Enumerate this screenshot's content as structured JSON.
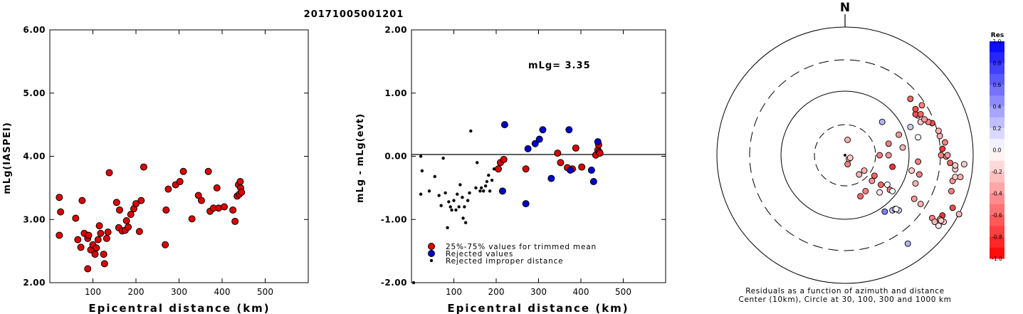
{
  "page_title": "20171005001201",
  "chart_data": [
    {
      "type": "scatter",
      "title": "",
      "xlabel": "Epicentral distance (km)",
      "ylabel": "mLg(IASPEI)",
      "xlim": [
        0,
        600
      ],
      "ylim": [
        2.0,
        6.0
      ],
      "x_ticks": [
        "100",
        "200",
        "300",
        "400",
        "500"
      ],
      "y_ticks": [
        "2.00",
        "3.00",
        "4.00",
        "5.00",
        "6.00"
      ],
      "series": [
        {
          "color": "#dd0000",
          "points": [
            [
              22,
              3.35
            ],
            [
              22,
              2.75
            ],
            [
              25,
              3.12
            ],
            [
              60,
              3.02
            ],
            [
              65,
              2.68
            ],
            [
              72,
              2.56
            ],
            [
              75,
              3.3
            ],
            [
              80,
              2.78
            ],
            [
              88,
              2.22
            ],
            [
              88,
              2.7
            ],
            [
              90,
              2.75
            ],
            [
              95,
              2.52
            ],
            [
              100,
              2.6
            ],
            [
              105,
              2.45
            ],
            [
              108,
              2.55
            ],
            [
              112,
              2.68
            ],
            [
              115,
              2.9
            ],
            [
              118,
              2.78
            ],
            [
              125,
              2.45
            ],
            [
              127,
              2.3
            ],
            [
              132,
              2.7
            ],
            [
              135,
              2.8
            ],
            [
              138,
              3.74
            ],
            [
              155,
              3.27
            ],
            [
              160,
              2.87
            ],
            [
              162,
              3.15
            ],
            [
              168,
              2.82
            ],
            [
              175,
              2.83
            ],
            [
              178,
              2.98
            ],
            [
              182,
              2.88
            ],
            [
              188,
              3.08
            ],
            [
              195,
              3.17
            ],
            [
              200,
              3.25
            ],
            [
              208,
              2.81
            ],
            [
              212,
              3.3
            ],
            [
              218,
              3.83
            ],
            [
              268,
              2.6
            ],
            [
              270,
              3.15
            ],
            [
              275,
              3.48
            ],
            [
              292,
              3.55
            ],
            [
              302,
              3.6
            ],
            [
              310,
              3.76
            ],
            [
              330,
              3.01
            ],
            [
              345,
              3.38
            ],
            [
              352,
              3.3
            ],
            [
              368,
              3.76
            ],
            [
              372,
              3.13
            ],
            [
              380,
              3.18
            ],
            [
              388,
              3.5
            ],
            [
              392,
              3.18
            ],
            [
              405,
              3.2
            ],
            [
              425,
              3.15
            ],
            [
              430,
              2.97
            ],
            [
              435,
              3.37
            ],
            [
              438,
              3.55
            ],
            [
              440,
              3.4
            ],
            [
              442,
              3.6
            ],
            [
              443,
              3.5
            ],
            [
              445,
              3.43
            ]
          ]
        }
      ]
    },
    {
      "type": "scatter",
      "title": "",
      "xlabel": "Epicentral distance (km)",
      "ylabel": "mLg - mLg(evt)",
      "xlim": [
        0,
        600
      ],
      "ylim": [
        -2.0,
        2.0
      ],
      "x_ticks": [
        "100",
        "200",
        "300",
        "400",
        "500"
      ],
      "y_ticks": [
        "-2.00",
        "-1.00",
        "0.00",
        "1.00",
        "2.00"
      ],
      "annotation": "mLg= 3.35",
      "legend": [
        "25%-75% values for trimmed mean",
        "Rejected values",
        "Rejected improper distance"
      ],
      "series": [
        {
          "name": "25%-75% values for trimmed mean",
          "color": "#dd0000",
          "marker": "circle",
          "points": [
            [
              205,
              -0.2
            ],
            [
              210,
              -0.1
            ],
            [
              218,
              -0.05
            ],
            [
              270,
              -0.2
            ],
            [
              345,
              0.05
            ],
            [
              352,
              -0.1
            ],
            [
              368,
              -0.18
            ],
            [
              380,
              -0.2
            ],
            [
              388,
              0.13
            ],
            [
              402,
              -0.17
            ],
            [
              435,
              0.02
            ],
            [
              440,
              0.1
            ],
            [
              442,
              0.18
            ],
            [
              443,
              0.07
            ],
            [
              445,
              0.05
            ]
          ]
        },
        {
          "name": "Rejected values",
          "color": "#0000cc",
          "marker": "circle",
          "points": [
            [
              215,
              -0.55
            ],
            [
              220,
              0.5
            ],
            [
              270,
              -0.75
            ],
            [
              275,
              0.12
            ],
            [
              292,
              0.2
            ],
            [
              302,
              0.27
            ],
            [
              310,
              0.42
            ],
            [
              330,
              -0.35
            ],
            [
              372,
              0.42
            ],
            [
              375,
              -0.22
            ],
            [
              425,
              -0.22
            ],
            [
              430,
              -0.4
            ],
            [
              440,
              0.23
            ]
          ]
        },
        {
          "name": "Rejected improper distance",
          "color": "#000000",
          "marker": "dot",
          "points": [
            [
              5,
              -2.0
            ],
            [
              22,
              0.0
            ],
            [
              22,
              -0.6
            ],
            [
              25,
              -0.23
            ],
            [
              42,
              -0.55
            ],
            [
              55,
              -0.32
            ],
            [
              65,
              -0.62
            ],
            [
              70,
              -0.78
            ],
            [
              75,
              -0.03
            ],
            [
              80,
              -0.58
            ],
            [
              85,
              -1.13
            ],
            [
              88,
              -0.72
            ],
            [
              92,
              -0.8
            ],
            [
              95,
              -0.85
            ],
            [
              100,
              -0.7
            ],
            [
              105,
              -0.85
            ],
            [
              108,
              -0.6
            ],
            [
              112,
              -0.8
            ],
            [
              115,
              -0.45
            ],
            [
              120,
              -0.65
            ],
            [
              122,
              -0.98
            ],
            [
              125,
              -0.8
            ],
            [
              128,
              -1.05
            ],
            [
              133,
              -0.7
            ],
            [
              137,
              -0.58
            ],
            [
              140,
              0.4
            ],
            [
              152,
              -0.5
            ],
            [
              155,
              -0.1
            ],
            [
              162,
              -0.55
            ],
            [
              165,
              -0.5
            ],
            [
              170,
              -0.55
            ],
            [
              175,
              -0.47
            ],
            [
              178,
              -0.4
            ],
            [
              182,
              -0.3
            ],
            [
              185,
              -0.55
            ],
            [
              190,
              -0.38
            ],
            [
              195,
              -0.2
            ]
          ]
        }
      ]
    },
    {
      "type": "scatter",
      "subtype": "polar",
      "title": "N",
      "caption_line1": "Residuals as a function of azimuth and distance",
      "caption_line2": "Center (10km), Circle at 30, 100, 300 and 1000 km",
      "colorbar_title": "Res",
      "colorbar_ticks": [
        "1.0",
        "0.8",
        "0.6",
        "0.4",
        "0.2",
        "0.0",
        "-0.2",
        "-0.4",
        "-0.6",
        "-0.8",
        "-1.0"
      ],
      "series": [
        {
          "points": [
            [
              -27,
              -29,
              -0.1
            ],
            [
              -35,
              -27,
              -0.5
            ],
            [
              -37,
              -28,
              0.0
            ],
            [
              -33,
              -23,
              0.0
            ],
            [
              -31,
              -44,
              0.5
            ],
            [
              -42,
              -43,
              0.2
            ],
            [
              -37,
              -43,
              0.2
            ],
            [
              -49,
              -69,
              0.3
            ],
            [
              -73,
              -55,
              -0.1
            ],
            [
              -77,
              -52,
              -0.2
            ],
            [
              -89,
              -46,
              -0.3
            ],
            [
              -76,
              -47,
              -0.8
            ],
            [
              -84,
              -41,
              -0.7
            ],
            [
              -83,
              -28,
              -0.5
            ],
            [
              -84,
              -20,
              -0.4
            ],
            [
              -82,
              -6,
              -0.6
            ],
            [
              -86,
              -17,
              -0.2
            ],
            [
              -90,
              -17,
              -0.3
            ],
            [
              -86,
              -11,
              -0.2
            ],
            [
              -86,
              -8,
              -0.2
            ],
            [
              -76,
              5,
              -0.8
            ],
            [
              -75,
              0,
              -0.5
            ],
            [
              -79,
              -1,
              -0.4
            ],
            [
              -80,
              0,
              -0.4
            ],
            [
              -93,
              -7,
              -0.2
            ],
            [
              -78,
              10,
              -0.5
            ],
            [
              -74,
              15,
              -0.3
            ],
            [
              -57,
              14,
              0.0
            ],
            [
              -73,
              19,
              -0.3
            ],
            [
              -68,
              25,
              -0.7
            ],
            [
              -65,
              26,
              -0.5
            ],
            [
              -59,
              26,
              -0.2
            ],
            [
              -62,
              28,
              -0.4
            ],
            [
              -57,
              31,
              -0.5
            ],
            [
              -55,
              32,
              -0.7
            ],
            [
              -59,
              32,
              -0.6
            ],
            [
              -55,
              36,
              -0.7
            ],
            [
              -60,
              39,
              -0.5
            ],
            [
              -51,
              44,
              -0.6
            ],
            [
              -51,
              22,
              0.2
            ],
            [
              -59,
              -38,
              -0.3
            ],
            [
              -68,
              -49,
              -0.5
            ],
            [
              -70,
              -52,
              -0.3
            ],
            [
              -28,
              -23,
              -0.6
            ],
            [
              -29,
              26,
              0.3
            ],
            [
              -42,
              16,
              -0.4
            ],
            [
              -57,
              -5,
              -0.5
            ],
            [
              -39,
              -42,
              0.0
            ],
            [
              -40,
              -42,
              0.0
            ],
            [
              -54,
              -34,
              -0.4
            ],
            [
              -74,
              -50,
              -0.4
            ],
            [
              -75,
              -51,
              -0.2
            ],
            [
              -58,
              -15,
              -0.5
            ],
            [
              -52,
              -12,
              -0.2
            ],
            [
              -55,
              -22,
              -0.3
            ],
            [
              -37,
              -9,
              -0.8
            ],
            [
              -45,
              6,
              -0.3
            ],
            [
              -34,
              9,
              -0.5
            ],
            [
              -34,
              0,
              -0.4
            ],
            [
              -23,
              -16,
              -0.6
            ],
            [
              -27,
              0,
              -0.5
            ],
            [
              -2,
              12,
              -0.3
            ],
            [
              -11,
              -15,
              -0.3
            ],
            [
              -15,
              -12,
              -0.3
            ],
            [
              -21,
              -20,
              -0.4
            ],
            [
              -16,
              -28,
              -0.5
            ],
            [
              -12,
              -32,
              -0.6
            ],
            [
              -3,
              -3,
              -0.3
            ],
            [
              -4,
              -2,
              -0.2
            ],
            [
              -2,
              -7,
              -0.5
            ]
          ]
        }
      ]
    }
  ]
}
